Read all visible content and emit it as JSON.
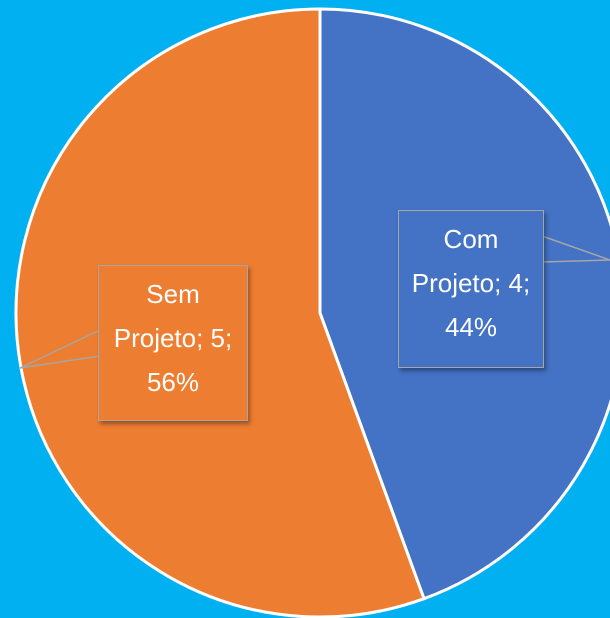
{
  "chart_data": {
    "type": "pie",
    "values": [
      4,
      5
    ],
    "value_labels": [
      "Com Projeto; 4; 44%",
      "Sem Projeto; 5; 56%"
    ],
    "colors": [
      "#4472c4",
      "#ed7d31"
    ],
    "start_angle": 90,
    "direction": "clockwise"
  }
}
